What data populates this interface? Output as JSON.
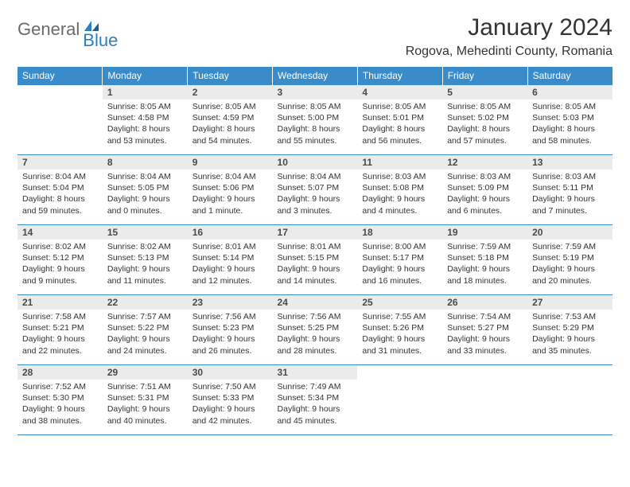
{
  "logo": {
    "general": "General",
    "blue": "Blue"
  },
  "title": "January 2024",
  "location": "Rogova, Mehedinti County, Romania",
  "colors": {
    "header_bg": "#3a8bc9",
    "header_text": "#ffffff",
    "daynum_bg": "#ebebeb",
    "daynum_text": "#4a4a4a",
    "body_text": "#333333",
    "border": "#3a8bc9",
    "logo_gray": "#6a6a6a",
    "logo_blue": "#2a7fbf"
  },
  "weekdays": [
    "Sunday",
    "Monday",
    "Tuesday",
    "Wednesday",
    "Thursday",
    "Friday",
    "Saturday"
  ],
  "weeks": [
    [
      null,
      {
        "n": "1",
        "sr": "8:05 AM",
        "ss": "4:58 PM",
        "dl": "8 hours and 53 minutes."
      },
      {
        "n": "2",
        "sr": "8:05 AM",
        "ss": "4:59 PM",
        "dl": "8 hours and 54 minutes."
      },
      {
        "n": "3",
        "sr": "8:05 AM",
        "ss": "5:00 PM",
        "dl": "8 hours and 55 minutes."
      },
      {
        "n": "4",
        "sr": "8:05 AM",
        "ss": "5:01 PM",
        "dl": "8 hours and 56 minutes."
      },
      {
        "n": "5",
        "sr": "8:05 AM",
        "ss": "5:02 PM",
        "dl": "8 hours and 57 minutes."
      },
      {
        "n": "6",
        "sr": "8:05 AM",
        "ss": "5:03 PM",
        "dl": "8 hours and 58 minutes."
      }
    ],
    [
      {
        "n": "7",
        "sr": "8:04 AM",
        "ss": "5:04 PM",
        "dl": "8 hours and 59 minutes."
      },
      {
        "n": "8",
        "sr": "8:04 AM",
        "ss": "5:05 PM",
        "dl": "9 hours and 0 minutes."
      },
      {
        "n": "9",
        "sr": "8:04 AM",
        "ss": "5:06 PM",
        "dl": "9 hours and 1 minute."
      },
      {
        "n": "10",
        "sr": "8:04 AM",
        "ss": "5:07 PM",
        "dl": "9 hours and 3 minutes."
      },
      {
        "n": "11",
        "sr": "8:03 AM",
        "ss": "5:08 PM",
        "dl": "9 hours and 4 minutes."
      },
      {
        "n": "12",
        "sr": "8:03 AM",
        "ss": "5:09 PM",
        "dl": "9 hours and 6 minutes."
      },
      {
        "n": "13",
        "sr": "8:03 AM",
        "ss": "5:11 PM",
        "dl": "9 hours and 7 minutes."
      }
    ],
    [
      {
        "n": "14",
        "sr": "8:02 AM",
        "ss": "5:12 PM",
        "dl": "9 hours and 9 minutes."
      },
      {
        "n": "15",
        "sr": "8:02 AM",
        "ss": "5:13 PM",
        "dl": "9 hours and 11 minutes."
      },
      {
        "n": "16",
        "sr": "8:01 AM",
        "ss": "5:14 PM",
        "dl": "9 hours and 12 minutes."
      },
      {
        "n": "17",
        "sr": "8:01 AM",
        "ss": "5:15 PM",
        "dl": "9 hours and 14 minutes."
      },
      {
        "n": "18",
        "sr": "8:00 AM",
        "ss": "5:17 PM",
        "dl": "9 hours and 16 minutes."
      },
      {
        "n": "19",
        "sr": "7:59 AM",
        "ss": "5:18 PM",
        "dl": "9 hours and 18 minutes."
      },
      {
        "n": "20",
        "sr": "7:59 AM",
        "ss": "5:19 PM",
        "dl": "9 hours and 20 minutes."
      }
    ],
    [
      {
        "n": "21",
        "sr": "7:58 AM",
        "ss": "5:21 PM",
        "dl": "9 hours and 22 minutes."
      },
      {
        "n": "22",
        "sr": "7:57 AM",
        "ss": "5:22 PM",
        "dl": "9 hours and 24 minutes."
      },
      {
        "n": "23",
        "sr": "7:56 AM",
        "ss": "5:23 PM",
        "dl": "9 hours and 26 minutes."
      },
      {
        "n": "24",
        "sr": "7:56 AM",
        "ss": "5:25 PM",
        "dl": "9 hours and 28 minutes."
      },
      {
        "n": "25",
        "sr": "7:55 AM",
        "ss": "5:26 PM",
        "dl": "9 hours and 31 minutes."
      },
      {
        "n": "26",
        "sr": "7:54 AM",
        "ss": "5:27 PM",
        "dl": "9 hours and 33 minutes."
      },
      {
        "n": "27",
        "sr": "7:53 AM",
        "ss": "5:29 PM",
        "dl": "9 hours and 35 minutes."
      }
    ],
    [
      {
        "n": "28",
        "sr": "7:52 AM",
        "ss": "5:30 PM",
        "dl": "9 hours and 38 minutes."
      },
      {
        "n": "29",
        "sr": "7:51 AM",
        "ss": "5:31 PM",
        "dl": "9 hours and 40 minutes."
      },
      {
        "n": "30",
        "sr": "7:50 AM",
        "ss": "5:33 PM",
        "dl": "9 hours and 42 minutes."
      },
      {
        "n": "31",
        "sr": "7:49 AM",
        "ss": "5:34 PM",
        "dl": "9 hours and 45 minutes."
      },
      null,
      null,
      null
    ]
  ],
  "labels": {
    "sunrise": "Sunrise:",
    "sunset": "Sunset:",
    "daylight": "Daylight:"
  }
}
